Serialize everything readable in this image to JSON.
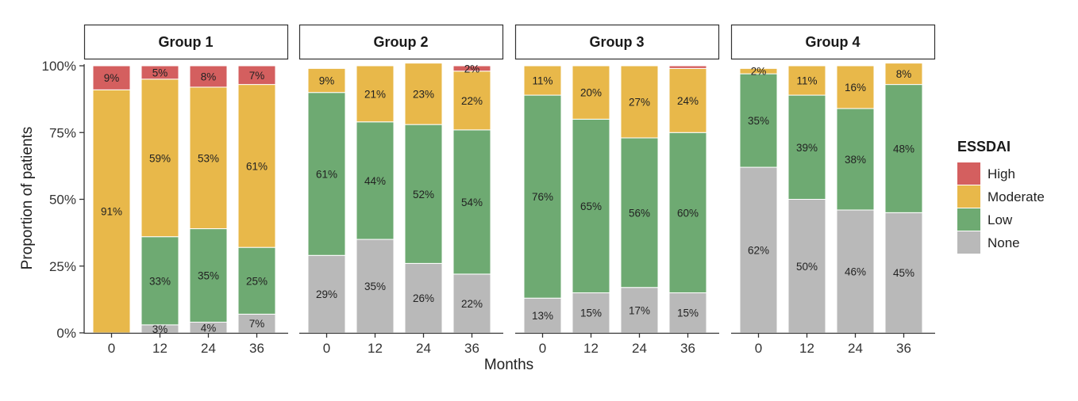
{
  "chart_data": {
    "type": "bar",
    "stacked": true,
    "x_label": "Months",
    "y_label": "Proportion of patients",
    "y_ticks": [
      "0%",
      "25%",
      "50%",
      "75%",
      "100%"
    ],
    "ylim": [
      0,
      100
    ],
    "categories": [
      "0",
      "12",
      "24",
      "36"
    ],
    "legend": {
      "title": "ESSDAI",
      "placement": "right",
      "entries": [
        "High",
        "Moderate",
        "Low",
        "None"
      ]
    },
    "colors": {
      "High": "#d45f5f",
      "Moderate": "#e8b84a",
      "Low": "#6eaa72",
      "None": "#b9b9b9"
    },
    "stack_order": [
      "None",
      "Low",
      "Moderate",
      "High"
    ],
    "panels": [
      {
        "title": "Group 1",
        "series": [
          {
            "name": "None",
            "values": [
              0,
              3,
              4,
              7
            ],
            "labels": [
              "",
              "3%",
              "4%",
              "7%"
            ]
          },
          {
            "name": "Low",
            "values": [
              0,
              33,
              35,
              25
            ],
            "labels": [
              "",
              "33%",
              "35%",
              "25%"
            ]
          },
          {
            "name": "Moderate",
            "values": [
              91,
              59,
              53,
              61
            ],
            "labels": [
              "91%",
              "59%",
              "53%",
              "61%"
            ]
          },
          {
            "name": "High",
            "values": [
              9,
              5,
              8,
              7
            ],
            "labels": [
              "9%",
              "5%",
              "8%",
              "7%"
            ]
          }
        ]
      },
      {
        "title": "Group 2",
        "series": [
          {
            "name": "None",
            "values": [
              29,
              35,
              26,
              22
            ],
            "labels": [
              "29%",
              "35%",
              "26%",
              "22%"
            ]
          },
          {
            "name": "Low",
            "values": [
              61,
              44,
              52,
              54
            ],
            "labels": [
              "61%",
              "44%",
              "52%",
              "54%"
            ]
          },
          {
            "name": "Moderate",
            "values": [
              9,
              21,
              23,
              22
            ],
            "labels": [
              "9%",
              "21%",
              "23%",
              "22%"
            ]
          },
          {
            "name": "High",
            "values": [
              0,
              0,
              0,
              2
            ],
            "labels": [
              "",
              "",
              "",
              "2%"
            ]
          }
        ]
      },
      {
        "title": "Group 3",
        "series": [
          {
            "name": "None",
            "values": [
              13,
              15,
              17,
              15
            ],
            "labels": [
              "13%",
              "15%",
              "17%",
              "15%"
            ]
          },
          {
            "name": "Low",
            "values": [
              76,
              65,
              56,
              60
            ],
            "labels": [
              "76%",
              "65%",
              "56%",
              "60%"
            ]
          },
          {
            "name": "Moderate",
            "values": [
              11,
              20,
              27,
              24
            ],
            "labels": [
              "11%",
              "20%",
              "27%",
              "24%"
            ]
          },
          {
            "name": "High",
            "values": [
              0,
              0,
              0,
              1
            ],
            "labels": [
              "",
              "",
              "",
              ""
            ]
          }
        ]
      },
      {
        "title": "Group 4",
        "series": [
          {
            "name": "None",
            "values": [
              62,
              50,
              46,
              45
            ],
            "labels": [
              "62%",
              "50%",
              "46%",
              "45%"
            ]
          },
          {
            "name": "Low",
            "values": [
              35,
              39,
              38,
              48
            ],
            "labels": [
              "35%",
              "39%",
              "38%",
              "48%"
            ]
          },
          {
            "name": "Moderate",
            "values": [
              2,
              11,
              16,
              8
            ],
            "labels": [
              "2%",
              "11%",
              "16%",
              "8%"
            ]
          },
          {
            "name": "High",
            "values": [
              0,
              0,
              0,
              0
            ],
            "labels": [
              "",
              "",
              "",
              ""
            ]
          }
        ]
      }
    ]
  }
}
